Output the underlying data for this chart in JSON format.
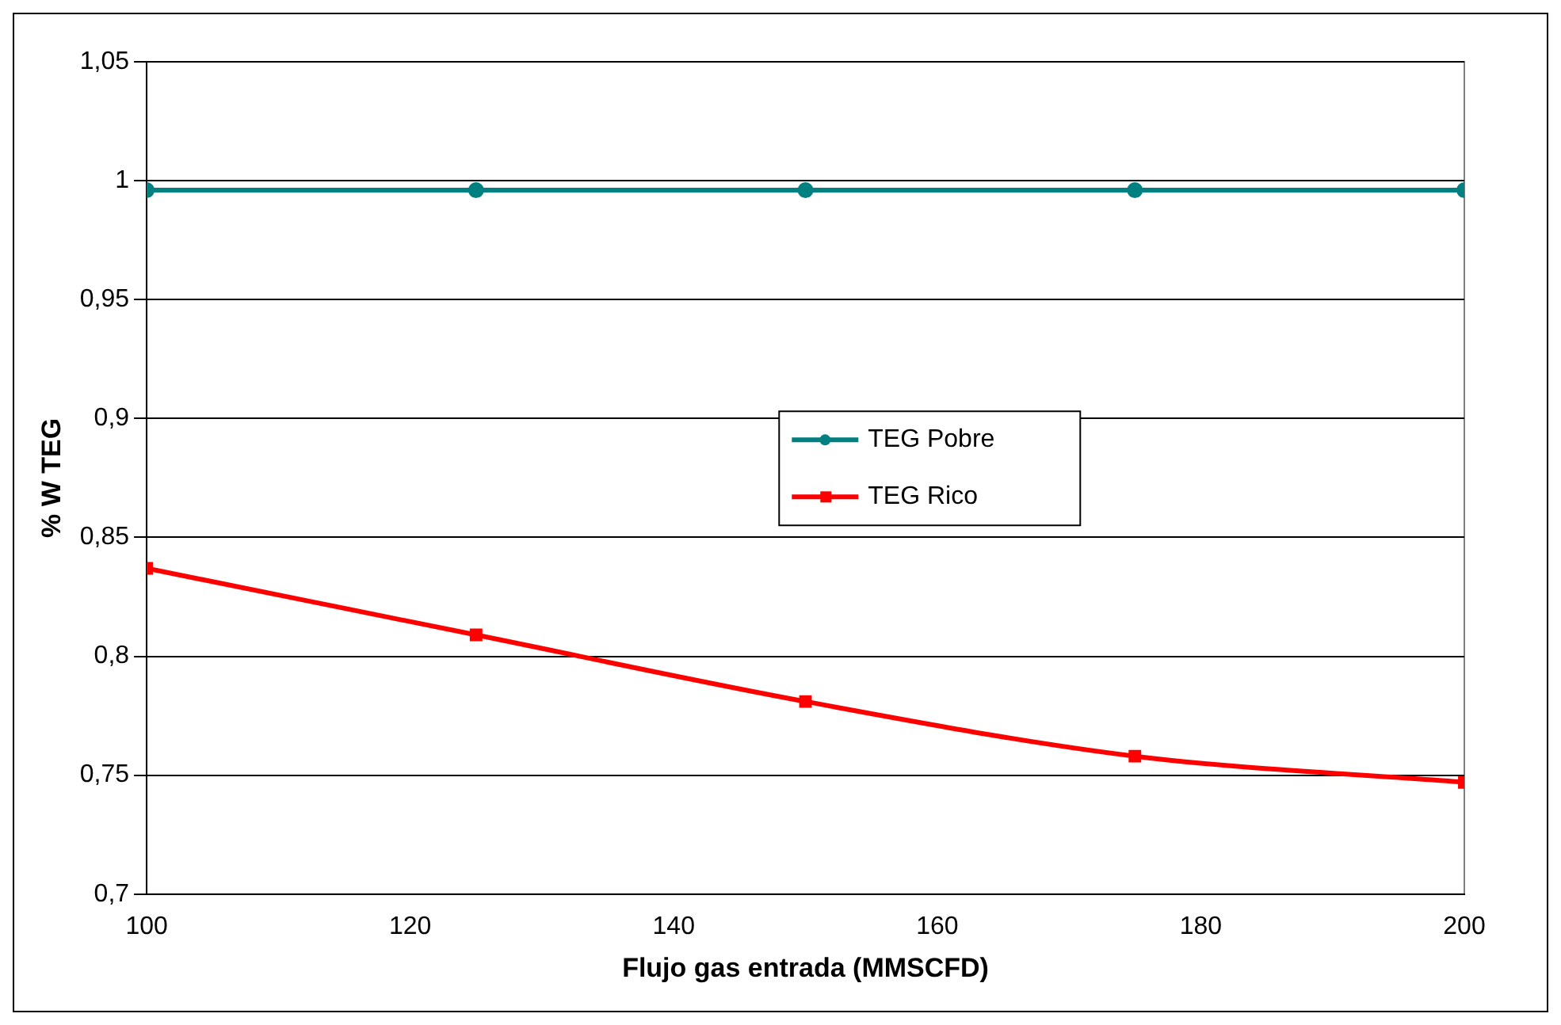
{
  "chart_data": {
    "type": "line",
    "xlabel": "Flujo gas entrada (MMSCFD)",
    "ylabel": "% W TEG",
    "x": [
      100,
      125,
      150,
      175,
      200
    ],
    "series": [
      {
        "name": "TEG Pobre",
        "color": "#008080",
        "marker": "circle",
        "values": [
          0.996,
          0.996,
          0.996,
          0.996,
          0.996
        ]
      },
      {
        "name": "TEG Rico",
        "color": "#ff0000",
        "marker": "square",
        "values": [
          0.837,
          0.809,
          0.781,
          0.758,
          0.747
        ]
      }
    ],
    "xlim": [
      100,
      200
    ],
    "xticks": [
      100,
      120,
      140,
      160,
      180,
      200
    ],
    "ylim": [
      0.7,
      1.05
    ],
    "yticks": [
      {
        "value": 0.7,
        "label": "0,7"
      },
      {
        "value": 0.75,
        "label": "0,75"
      },
      {
        "value": 0.8,
        "label": "0,8"
      },
      {
        "value": 0.85,
        "label": "0,85"
      },
      {
        "value": 0.9,
        "label": "0,9"
      },
      {
        "value": 0.95,
        "label": "0,95"
      },
      {
        "value": 1,
        "label": "1"
      },
      {
        "value": 1.05,
        "label": "1,05"
      }
    ],
    "grid": "y",
    "legend": "right",
    "line_style": "solid"
  }
}
